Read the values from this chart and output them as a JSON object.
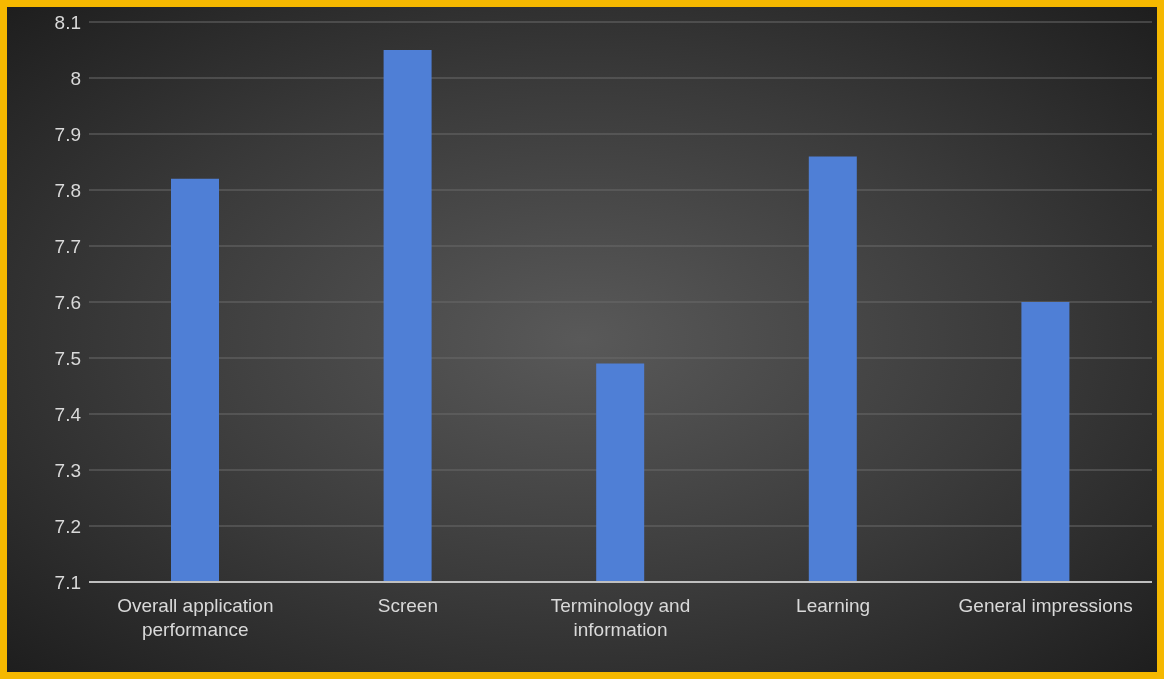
{
  "chart_data": {
    "type": "bar",
    "categories": [
      "Overall application performance",
      "Screen",
      "Terminology and information",
      "Learning",
      "General impressions"
    ],
    "values": [
      7.82,
      8.05,
      7.49,
      7.86,
      7.6
    ],
    "color": "#4f7fd6",
    "ylim": [
      7.1,
      8.1
    ],
    "yticks": [
      7.1,
      7.2,
      7.3,
      7.4,
      7.5,
      7.6,
      7.7,
      7.8,
      7.9,
      8,
      8.1
    ],
    "grid": "y"
  }
}
